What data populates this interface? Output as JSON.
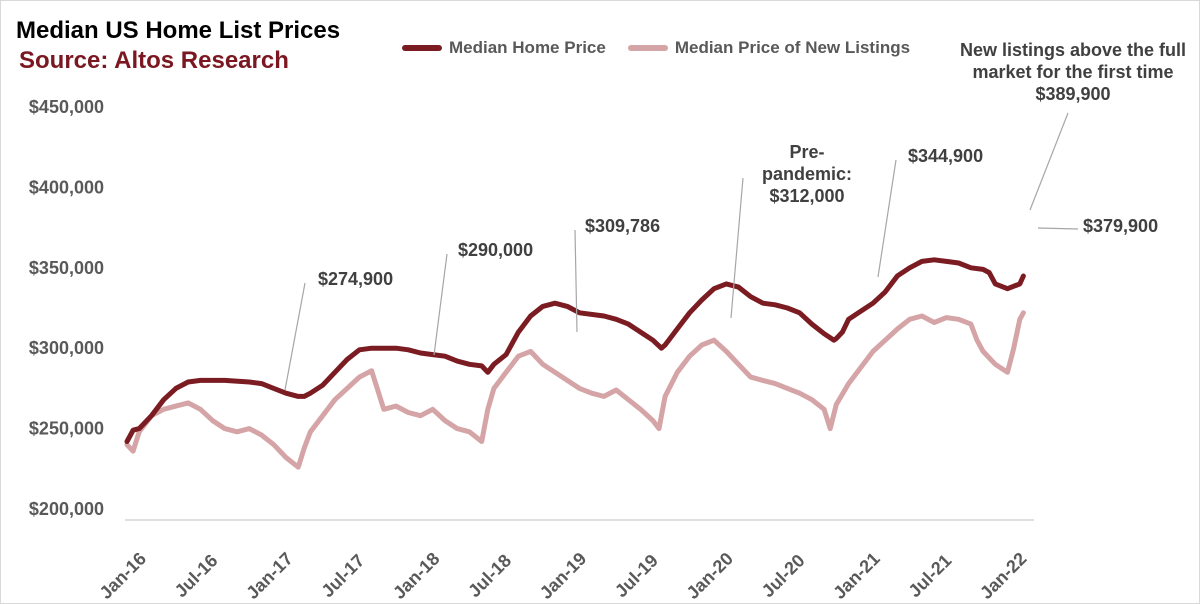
{
  "chart_data": {
    "type": "line",
    "title": "Median US Home List Prices",
    "subtitle": "Source: Altos Research",
    "xlabel": "",
    "ylabel": "",
    "ylim": [
      200000,
      450000
    ],
    "yticks": [
      "$200,000",
      "$250,000",
      "$300,000",
      "$350,000",
      "$400,000",
      "$450,000"
    ],
    "ytick_values": [
      200000,
      250000,
      300000,
      350000,
      400000,
      450000
    ],
    "xticks": [
      "Jan-16",
      "Jul-16",
      "Jan-17",
      "Jul-17",
      "Jan-18",
      "Jul-18",
      "Jan-19",
      "Jul-19",
      "Jan-20",
      "Jul-20",
      "Jan-21",
      "Jul-21",
      "Jan-22"
    ],
    "xlim": [
      0,
      74
    ],
    "grid": false,
    "legend_position": "top",
    "series": [
      {
        "name": "Median Home Price",
        "color": "#7b1c22",
        "points": [
          [
            0,
            242000
          ],
          [
            0.5,
            249000
          ],
          [
            1,
            250000
          ],
          [
            2,
            258000
          ],
          [
            3,
            268000
          ],
          [
            4,
            275000
          ],
          [
            5,
            279000
          ],
          [
            6,
            280000
          ],
          [
            8,
            280000
          ],
          [
            10,
            279000
          ],
          [
            11,
            278000
          ],
          [
            12,
            275000
          ],
          [
            13,
            272000
          ],
          [
            14,
            270000
          ],
          [
            14.5,
            270000
          ],
          [
            15,
            272000
          ],
          [
            16,
            277000
          ],
          [
            17,
            285000
          ],
          [
            18,
            293000
          ],
          [
            19,
            299000
          ],
          [
            20,
            300000
          ],
          [
            22,
            300000
          ],
          [
            23,
            299000
          ],
          [
            24,
            297000
          ],
          [
            25,
            296000
          ],
          [
            26,
            295000
          ],
          [
            27,
            292000
          ],
          [
            28,
            290000
          ],
          [
            29,
            289000
          ],
          [
            29.5,
            285000
          ],
          [
            30,
            290000
          ],
          [
            31,
            296000
          ],
          [
            32,
            310000
          ],
          [
            33,
            320000
          ],
          [
            34,
            326000
          ],
          [
            35,
            328000
          ],
          [
            36,
            326000
          ],
          [
            37,
            322000
          ],
          [
            39,
            320000
          ],
          [
            40,
            318000
          ],
          [
            41,
            315000
          ],
          [
            42,
            310000
          ],
          [
            43,
            305000
          ],
          [
            43.7,
            300000
          ],
          [
            44,
            302000
          ],
          [
            45,
            312000
          ],
          [
            46,
            322000
          ],
          [
            47,
            330000
          ],
          [
            48,
            337000
          ],
          [
            49,
            340000
          ],
          [
            50,
            338000
          ],
          [
            51,
            332000
          ],
          [
            52,
            328000
          ],
          [
            53,
            327000
          ],
          [
            54,
            325000
          ],
          [
            55,
            322000
          ],
          [
            56,
            315000
          ],
          [
            57,
            309000
          ],
          [
            57.8,
            305000
          ],
          [
            58,
            306000
          ],
          [
            58.5,
            310000
          ],
          [
            59,
            318000
          ],
          [
            60,
            323000
          ],
          [
            61,
            328000
          ],
          [
            62,
            335000
          ],
          [
            63,
            345000
          ],
          [
            64,
            350000
          ],
          [
            65,
            354000
          ],
          [
            66,
            355000
          ],
          [
            67,
            354000
          ],
          [
            68,
            353000
          ],
          [
            69,
            350000
          ],
          [
            70,
            349000
          ],
          [
            70.5,
            347000
          ],
          [
            71,
            340000
          ],
          [
            72,
            337000
          ],
          [
            73,
            340000
          ],
          [
            73.3,
            344900
          ]
        ]
      },
      {
        "name": "Median Price of New Listings",
        "color": "#d5a4a6",
        "points": [
          [
            0,
            240000
          ],
          [
            0.5,
            236000
          ],
          [
            1,
            248000
          ],
          [
            2,
            258000
          ],
          [
            3,
            262000
          ],
          [
            4,
            264000
          ],
          [
            5,
            266000
          ],
          [
            6,
            262000
          ],
          [
            7,
            255000
          ],
          [
            8,
            250000
          ],
          [
            9,
            248000
          ],
          [
            10,
            250000
          ],
          [
            11,
            246000
          ],
          [
            12,
            240000
          ],
          [
            13,
            232000
          ],
          [
            14,
            226000
          ],
          [
            14.5,
            238000
          ],
          [
            15,
            248000
          ],
          [
            16,
            258000
          ],
          [
            17,
            268000
          ],
          [
            18,
            275000
          ],
          [
            19,
            282000
          ],
          [
            20,
            286000
          ],
          [
            21,
            262000
          ],
          [
            22,
            264000
          ],
          [
            23,
            260000
          ],
          [
            24,
            258000
          ],
          [
            25,
            262000
          ],
          [
            26,
            255000
          ],
          [
            27,
            250000
          ],
          [
            28,
            248000
          ],
          [
            29,
            242000
          ],
          [
            29.5,
            262000
          ],
          [
            30,
            275000
          ],
          [
            31,
            285000
          ],
          [
            32,
            295000
          ],
          [
            33,
            298000
          ],
          [
            34,
            290000
          ],
          [
            35,
            285000
          ],
          [
            36,
            280000
          ],
          [
            37,
            275000
          ],
          [
            38,
            272000
          ],
          [
            39,
            270000
          ],
          [
            40,
            274000
          ],
          [
            41,
            268000
          ],
          [
            42,
            262000
          ],
          [
            43,
            255000
          ],
          [
            43.5,
            250000
          ],
          [
            44,
            270000
          ],
          [
            45,
            285000
          ],
          [
            46,
            295000
          ],
          [
            47,
            302000
          ],
          [
            48,
            305000
          ],
          [
            49,
            298000
          ],
          [
            50,
            290000
          ],
          [
            51,
            282000
          ],
          [
            52,
            280000
          ],
          [
            53,
            278000
          ],
          [
            54,
            275000
          ],
          [
            55,
            272000
          ],
          [
            56,
            268000
          ],
          [
            57,
            262000
          ],
          [
            57.5,
            250000
          ],
          [
            58,
            265000
          ],
          [
            59,
            278000
          ],
          [
            60,
            288000
          ],
          [
            61,
            298000
          ],
          [
            62,
            305000
          ],
          [
            63,
            312000
          ],
          [
            64,
            318000
          ],
          [
            65,
            320000
          ],
          [
            66,
            316000
          ],
          [
            67,
            319000
          ],
          [
            68,
            318000
          ],
          [
            69,
            315000
          ],
          [
            69.5,
            305000
          ],
          [
            70,
            298000
          ],
          [
            71,
            290000
          ],
          [
            72,
            285000
          ],
          [
            72.5,
            300000
          ],
          [
            73,
            318000
          ],
          [
            73.3,
            322000
          ]
        ]
      }
    ],
    "annotations": [
      {
        "lines": [
          "$274,900"
        ]
      },
      {
        "lines": [
          "$290,000"
        ]
      },
      {
        "lines": [
          "$309,786"
        ]
      },
      {
        "lines": [
          "Pre-",
          "pandemic:",
          "$312,000"
        ]
      },
      {
        "lines": [
          "$344,900"
        ]
      },
      {
        "lines": [
          "New listings above the full",
          "market for the first time",
          "$389,900"
        ]
      },
      {
        "lines": [
          "$379,900"
        ]
      }
    ]
  }
}
